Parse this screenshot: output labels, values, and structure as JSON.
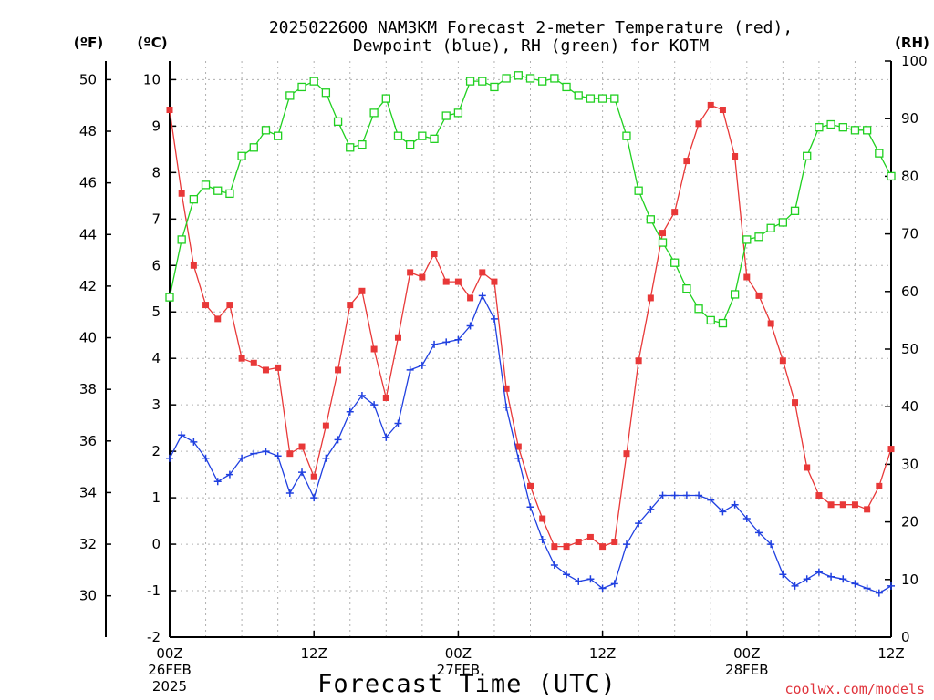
{
  "title_line1": "2025022600 NAM3KM Forecast 2-meter Temperature (red),",
  "title_line2": "Dewpoint (blue), RH (green) for KOTM",
  "units": {
    "f": "(ºF)",
    "c": "(ºC)",
    "rh": "(RH)"
  },
  "xlabel": "Forecast Time (UTC)",
  "credit": "coolwx.com/models",
  "colors": {
    "temperature": "#e83838",
    "dewpoint": "#2040e0",
    "rh": "#20d020",
    "credit": "#e0343c"
  },
  "chart_data": {
    "type": "line",
    "x_unit": "forecast hour",
    "xlim": [
      0,
      60
    ],
    "ylim_c": [
      -2,
      10.4
    ],
    "ylim_rh": [
      0,
      100
    ],
    "x_ticks": [
      {
        "x": 0,
        "label": "00Z",
        "sub1": "26FEB",
        "sub2": "2025"
      },
      {
        "x": 12,
        "label": "12Z",
        "sub1": "",
        "sub2": ""
      },
      {
        "x": 24,
        "label": "00Z",
        "sub1": "27FEB",
        "sub2": ""
      },
      {
        "x": 36,
        "label": "12Z",
        "sub1": "",
        "sub2": ""
      },
      {
        "x": 48,
        "label": "00Z",
        "sub1": "28FEB",
        "sub2": ""
      },
      {
        "x": 60,
        "label": "12Z",
        "sub1": "",
        "sub2": ""
      }
    ],
    "y_ticks_c": [
      -2,
      -1,
      0,
      1,
      2,
      3,
      4,
      5,
      6,
      7,
      8,
      9,
      10
    ],
    "y_ticks_f": [
      30,
      32,
      34,
      36,
      38,
      40,
      42,
      44,
      46,
      48,
      50
    ],
    "y_ticks_rh": [
      0,
      10,
      20,
      30,
      40,
      50,
      60,
      70,
      80,
      90,
      100
    ],
    "grid": true,
    "series": [
      {
        "name": "Temperature",
        "marker": "filled-square",
        "axis": "c",
        "values": [
          9.35,
          7.55,
          6.0,
          5.15,
          4.85,
          5.15,
          4.0,
          3.9,
          3.75,
          3.8,
          1.95,
          2.1,
          1.45,
          2.55,
          3.75,
          5.15,
          5.45,
          4.2,
          3.15,
          4.45,
          5.85,
          5.75,
          6.25,
          5.65,
          5.65,
          5.3,
          5.85,
          5.65,
          3.35,
          2.1,
          1.25,
          0.55,
          -0.05,
          -0.05,
          0.05,
          0.15,
          -0.05,
          0.05,
          1.95,
          3.95,
          5.3,
          6.7,
          7.15,
          8.25,
          9.05,
          9.45,
          9.35,
          8.35,
          5.75,
          5.35,
          4.75,
          3.95,
          3.05,
          1.65,
          1.05,
          0.85,
          0.85,
          0.85,
          0.75,
          1.25,
          2.05
        ]
      },
      {
        "name": "Dewpoint",
        "marker": "plus",
        "axis": "c",
        "values": [
          1.85,
          2.35,
          2.2,
          1.85,
          1.35,
          1.5,
          1.85,
          1.95,
          2.0,
          1.9,
          1.1,
          1.55,
          1.0,
          1.85,
          2.25,
          2.85,
          3.2,
          3.0,
          2.3,
          2.6,
          3.75,
          3.85,
          4.3,
          4.35,
          4.4,
          4.7,
          5.35,
          4.85,
          2.95,
          1.85,
          0.8,
          0.1,
          -0.45,
          -0.65,
          -0.8,
          -0.75,
          -0.95,
          -0.85,
          0.0,
          0.45,
          0.75,
          1.05,
          1.05,
          1.05,
          1.05,
          0.95,
          0.7,
          0.85,
          0.55,
          0.25,
          0.0,
          -0.65,
          -0.9,
          -0.75,
          -0.6,
          -0.7,
          -0.75,
          -0.85,
          -0.95,
          -1.05,
          -0.9
        ]
      },
      {
        "name": "RH",
        "marker": "open-square",
        "axis": "rh",
        "values": [
          59,
          69,
          76,
          78.5,
          77.5,
          77,
          83.5,
          85,
          88,
          87,
          94,
          95.5,
          96.5,
          94.5,
          89.5,
          85,
          85.5,
          91,
          93.5,
          87,
          85.5,
          87,
          86.5,
          90.5,
          91,
          96.5,
          96.5,
          95.5,
          97,
          97.5,
          97,
          96.5,
          97,
          95.5,
          94,
          93.5,
          93.5,
          93.5,
          87,
          77.5,
          72.5,
          68.5,
          65,
          60.5,
          57,
          55,
          54.5,
          59.5,
          69,
          69.5,
          71,
          72,
          74,
          83.5,
          88.5,
          89,
          88.5,
          88,
          88,
          84,
          80
        ]
      }
    ]
  }
}
